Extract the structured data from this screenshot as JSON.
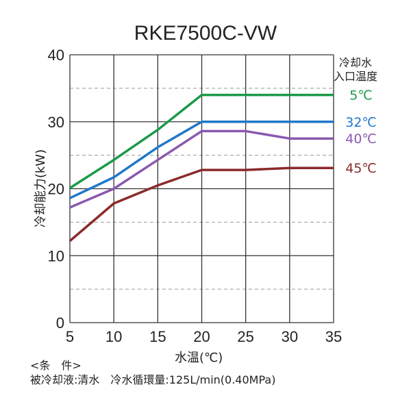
{
  "chart_data": {
    "type": "line",
    "title": "RKE7500C-VW",
    "xlabel": "水温(℃)",
    "ylabel": "冷却能力(kW)",
    "xlim": [
      5,
      35
    ],
    "ylim": [
      0,
      40
    ],
    "x_ticks": [
      "5",
      "10",
      "15",
      "20",
      "25",
      "30",
      "35"
    ],
    "y_ticks": [
      "0",
      "10",
      "20",
      "30",
      "40"
    ],
    "grid": true,
    "legend_title": [
      "冷却水",
      "入口温度"
    ],
    "legend_placement": "right",
    "x": [
      5,
      10,
      15,
      20,
      25,
      30,
      35
    ],
    "series": [
      {
        "name": "5℃",
        "color": "#1a9a48",
        "values": [
          20.1,
          24.3,
          28.8,
          34.0,
          34.0,
          34.0,
          34.0
        ]
      },
      {
        "name": "32℃",
        "color": "#1f78c8",
        "values": [
          18.6,
          21.7,
          26.2,
          30.0,
          30.0,
          30.0,
          30.0
        ]
      },
      {
        "name": "40℃",
        "color": "#8a58b0",
        "values": [
          17.2,
          20.0,
          24.3,
          28.6,
          28.6,
          27.5,
          27.5
        ]
      },
      {
        "name": "45℃",
        "color": "#8b2a2a",
        "values": [
          12.2,
          17.8,
          20.5,
          22.8,
          22.8,
          23.1,
          23.1
        ]
      }
    ]
  },
  "conditions": {
    "heading": "<条　件>",
    "text": "被冷却液:清水　冷水循環量:125L/min(0.40MPa)"
  }
}
